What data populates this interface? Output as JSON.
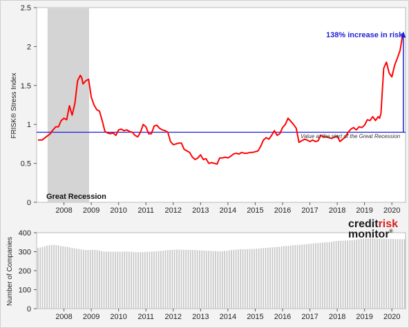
{
  "chart_data": [
    {
      "type": "line",
      "ylabel": "FRISK® Stress Index",
      "xlabel": "",
      "ylim": [
        0,
        2.5
      ],
      "xlim": [
        2007.5,
        2021.0
      ],
      "y_ticks": [
        "0",
        "0.5",
        "1",
        "1.5",
        "2",
        "2.5"
      ],
      "x_ticks": [
        "2008",
        "2009",
        "2010",
        "2011",
        "2012",
        "2013",
        "2014",
        "2015",
        "2016",
        "2017",
        "2018",
        "2019",
        "2020"
      ],
      "shaded_region": {
        "label": "Great Recession",
        "x_start": 2007.9,
        "x_end": 2009.42
      },
      "reference_line": {
        "y": 0.9,
        "label": "Value at the start of the Great Recession"
      },
      "annotation": {
        "text": "138% increase in risk",
        "x": 2020.92,
        "y_from": 0.9,
        "y_to": 2.16
      },
      "colors": {
        "series": "#ff0000",
        "reference": "#1f1fd6",
        "annotation": "#1f1fd6",
        "shade": "#d4d4d4"
      },
      "series": [
        {
          "x": [
            2007.55,
            2007.7,
            2007.85,
            2008.0,
            2008.05,
            2008.2,
            2008.3,
            2008.4,
            2008.5,
            2008.6,
            2008.7,
            2008.8,
            2008.9,
            2009.0,
            2009.1,
            2009.15,
            2009.2,
            2009.3,
            2009.4,
            2009.5,
            2009.6,
            2009.7,
            2009.8,
            2009.9,
            2010.0,
            2010.1,
            2010.2,
            2010.3,
            2010.4,
            2010.5,
            2010.6,
            2010.7,
            2010.8,
            2010.9,
            2011.0,
            2011.1,
            2011.2,
            2011.3,
            2011.4,
            2011.5,
            2011.6,
            2011.7,
            2011.8,
            2011.9,
            2012.0,
            2012.1,
            2012.2,
            2012.3,
            2012.4,
            2012.5,
            2012.6,
            2012.7,
            2012.8,
            2012.9,
            2013.0,
            2013.1,
            2013.2,
            2013.3,
            2013.4,
            2013.5,
            2013.6,
            2013.7,
            2013.8,
            2013.9,
            2014.0,
            2014.1,
            2014.2,
            2014.3,
            2014.4,
            2014.5,
            2014.6,
            2014.7,
            2014.8,
            2014.9,
            2015.0,
            2015.1,
            2015.2,
            2015.3,
            2015.4,
            2015.5,
            2015.6,
            2015.7,
            2015.8,
            2015.9,
            2016.0,
            2016.1,
            2016.2,
            2016.3,
            2016.4,
            2016.5,
            2016.6,
            2016.7,
            2016.8,
            2016.9,
            2017.0,
            2017.1,
            2017.2,
            2017.3,
            2017.4,
            2017.5,
            2017.6,
            2017.7,
            2017.8,
            2017.9,
            2018.0,
            2018.1,
            2018.2,
            2018.3,
            2018.4,
            2018.5,
            2018.6,
            2018.7,
            2018.8,
            2018.9,
            2019.0,
            2019.1,
            2019.2,
            2019.3,
            2019.4,
            2019.5,
            2019.6,
            2019.7,
            2019.8,
            2019.9,
            2020.0,
            2020.05,
            2020.1,
            2020.2,
            2020.3,
            2020.4,
            2020.5,
            2020.6,
            2020.7,
            2020.8,
            2020.9
          ],
          "values": [
            0.8,
            0.8,
            0.84,
            0.88,
            0.91,
            0.97,
            0.97,
            1.05,
            1.08,
            1.06,
            1.24,
            1.12,
            1.27,
            1.56,
            1.63,
            1.6,
            1.52,
            1.56,
            1.58,
            1.35,
            1.25,
            1.19,
            1.17,
            1.05,
            0.91,
            0.89,
            0.88,
            0.89,
            0.86,
            0.93,
            0.94,
            0.92,
            0.93,
            0.91,
            0.9,
            0.86,
            0.84,
            0.9,
            1.0,
            0.97,
            0.88,
            0.88,
            0.98,
            0.99,
            0.95,
            0.93,
            0.92,
            0.9,
            0.78,
            0.74,
            0.75,
            0.76,
            0.76,
            0.68,
            0.66,
            0.64,
            0.58,
            0.55,
            0.57,
            0.61,
            0.55,
            0.56,
            0.5,
            0.51,
            0.5,
            0.49,
            0.57,
            0.57,
            0.58,
            0.57,
            0.59,
            0.62,
            0.63,
            0.62,
            0.64,
            0.63,
            0.63,
            0.64,
            0.64,
            0.65,
            0.66,
            0.72,
            0.8,
            0.83,
            0.81,
            0.86,
            0.92,
            0.86,
            0.88,
            0.96,
            1.0,
            1.08,
            1.04,
            1.0,
            0.95,
            0.77,
            0.79,
            0.81,
            0.8,
            0.78,
            0.8,
            0.78,
            0.79,
            0.86,
            0.84,
            0.84,
            0.83,
            0.82,
            0.84,
            0.85,
            0.78,
            0.81,
            0.84,
            0.9,
            0.94,
            0.96,
            0.93,
            0.97,
            0.96,
            0.99,
            1.06,
            1.05,
            1.1,
            1.05,
            1.1,
            1.08,
            1.14,
            1.72,
            1.8,
            1.66,
            1.61,
            1.76,
            1.85,
            1.95,
            2.16
          ]
        }
      ]
    },
    {
      "type": "bar",
      "ylabel": "Number of Companies",
      "xlabel": "",
      "ylim": [
        0,
        400
      ],
      "xlim": [
        2007.5,
        2021.0
      ],
      "y_ticks": [
        "0",
        "100",
        "200",
        "300",
        "400"
      ],
      "x_ticks": [
        "2008",
        "2009",
        "2010",
        "2011",
        "2012",
        "2013",
        "2014",
        "2015",
        "2016",
        "2017",
        "2018",
        "2019",
        "2020"
      ],
      "colors": {
        "bars": "#c8c8c8"
      },
      "bar_x_start": 2007.55,
      "bar_x_step": 0.0833,
      "values": [
        320,
        322,
        325,
        328,
        332,
        334,
        336,
        336,
        335,
        333,
        330,
        328,
        327,
        325,
        322,
        320,
        318,
        316,
        314,
        312,
        310,
        309,
        309,
        309,
        310,
        310,
        308,
        306,
        303,
        301,
        300,
        300,
        300,
        300,
        300,
        300,
        300,
        300,
        301,
        301,
        300,
        300,
        299,
        298,
        298,
        298,
        298,
        299,
        300,
        300,
        301,
        301,
        302,
        303,
        304,
        305,
        307,
        308,
        309,
        310,
        311,
        311,
        311,
        310,
        310,
        310,
        310,
        309,
        309,
        309,
        308,
        307,
        307,
        306,
        305,
        305,
        304,
        303,
        303,
        302,
        302,
        303,
        304,
        305,
        307,
        309,
        310,
        311,
        312,
        313,
        313,
        313,
        313,
        314,
        314,
        315,
        316,
        317,
        318,
        319,
        320,
        321,
        322,
        323,
        324,
        325,
        326,
        328,
        329,
        330,
        331,
        332,
        334,
        335,
        336,
        336,
        337,
        338,
        340,
        341,
        342,
        344,
        345,
        346,
        347,
        348,
        349,
        350,
        351,
        352,
        354,
        356,
        357,
        358,
        358,
        359,
        359,
        360,
        361,
        362,
        364,
        366,
        368,
        369,
        370,
        370,
        370,
        370,
        369,
        369,
        368,
        368,
        368,
        367,
        367,
        367,
        367,
        366,
        366,
        366,
        366,
        366,
        367,
        367,
        367
      ]
    }
  ],
  "logo": {
    "part1": "credit",
    "part2": "risk",
    "part3": "monitor",
    "mark": "®",
    "color": "#1a1a1a"
  }
}
